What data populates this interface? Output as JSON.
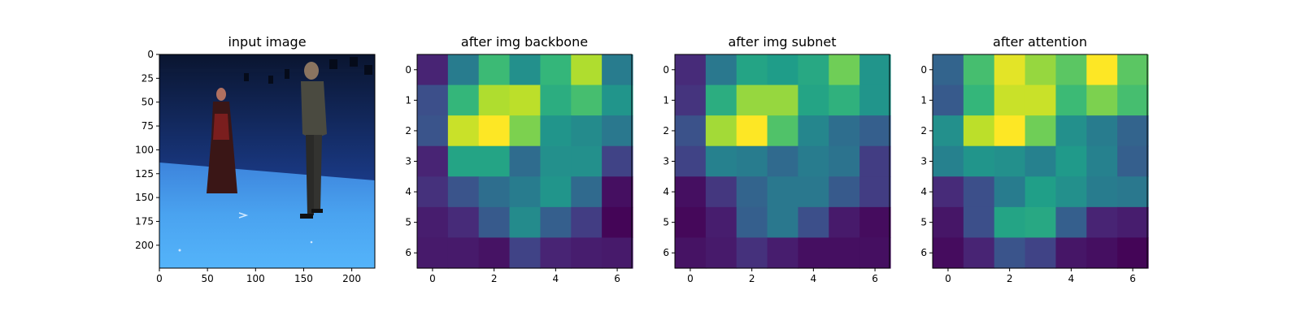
{
  "chart_data": [
    {
      "type": "image",
      "title": "input image",
      "xlim": [
        0,
        224
      ],
      "ylim": [
        224,
        0
      ],
      "xticks": [
        "0",
        "50",
        "100",
        "150",
        "200"
      ],
      "yticks": [
        "0",
        "25",
        "50",
        "75",
        "100",
        "125",
        "150",
        "175",
        "200"
      ]
    },
    {
      "type": "heatmap",
      "title": "after img backbone",
      "colormap": "viridis",
      "xticks": [
        "0",
        "2",
        "4",
        "6"
      ],
      "yticks": [
        "0",
        "1",
        "2",
        "3",
        "4",
        "5",
        "6"
      ],
      "values": [
        [
          0.1,
          0.42,
          0.68,
          0.5,
          0.66,
          0.88,
          0.42
        ],
        [
          0.24,
          0.66,
          0.88,
          0.9,
          0.62,
          0.7,
          0.52
        ],
        [
          0.26,
          0.92,
          1.0,
          0.8,
          0.52,
          0.48,
          0.4
        ],
        [
          0.1,
          0.58,
          0.58,
          0.35,
          0.5,
          0.5,
          0.2
        ],
        [
          0.14,
          0.26,
          0.36,
          0.42,
          0.52,
          0.34,
          0.04
        ],
        [
          0.08,
          0.12,
          0.28,
          0.48,
          0.3,
          0.18,
          0.01
        ],
        [
          0.07,
          0.07,
          0.05,
          0.2,
          0.1,
          0.08,
          0.07
        ]
      ]
    },
    {
      "type": "heatmap",
      "title": "after img subnet",
      "colormap": "viridis",
      "xticks": [
        "0",
        "2",
        "4",
        "6"
      ],
      "yticks": [
        "0",
        "1",
        "2",
        "3",
        "4",
        "5",
        "6"
      ],
      "values": [
        [
          0.12,
          0.4,
          0.58,
          0.55,
          0.6,
          0.78,
          0.52
        ],
        [
          0.15,
          0.62,
          0.84,
          0.84,
          0.58,
          0.64,
          0.52
        ],
        [
          0.25,
          0.86,
          1.0,
          0.72,
          0.46,
          0.36,
          0.3
        ],
        [
          0.2,
          0.44,
          0.42,
          0.34,
          0.42,
          0.38,
          0.18
        ],
        [
          0.04,
          0.16,
          0.32,
          0.4,
          0.4,
          0.28,
          0.18
        ],
        [
          0.02,
          0.08,
          0.3,
          0.4,
          0.24,
          0.07,
          0.03
        ],
        [
          0.05,
          0.07,
          0.14,
          0.08,
          0.04,
          0.04,
          0.04
        ]
      ]
    },
    {
      "type": "heatmap",
      "title": "after attention",
      "colormap": "viridis",
      "xticks": [
        "0",
        "2",
        "4",
        "6"
      ],
      "yticks": [
        "0",
        "1",
        "2",
        "3",
        "4",
        "5",
        "6"
      ],
      "values": [
        [
          0.32,
          0.7,
          0.96,
          0.84,
          0.74,
          1.0,
          0.74
        ],
        [
          0.28,
          0.66,
          0.92,
          0.92,
          0.68,
          0.8,
          0.7
        ],
        [
          0.5,
          0.9,
          1.0,
          0.78,
          0.5,
          0.42,
          0.32
        ],
        [
          0.44,
          0.52,
          0.5,
          0.44,
          0.54,
          0.44,
          0.3
        ],
        [
          0.12,
          0.24,
          0.42,
          0.56,
          0.5,
          0.42,
          0.4
        ],
        [
          0.06,
          0.24,
          0.58,
          0.6,
          0.3,
          0.1,
          0.08
        ],
        [
          0.03,
          0.1,
          0.26,
          0.2,
          0.06,
          0.04,
          0.01
        ]
      ]
    }
  ]
}
